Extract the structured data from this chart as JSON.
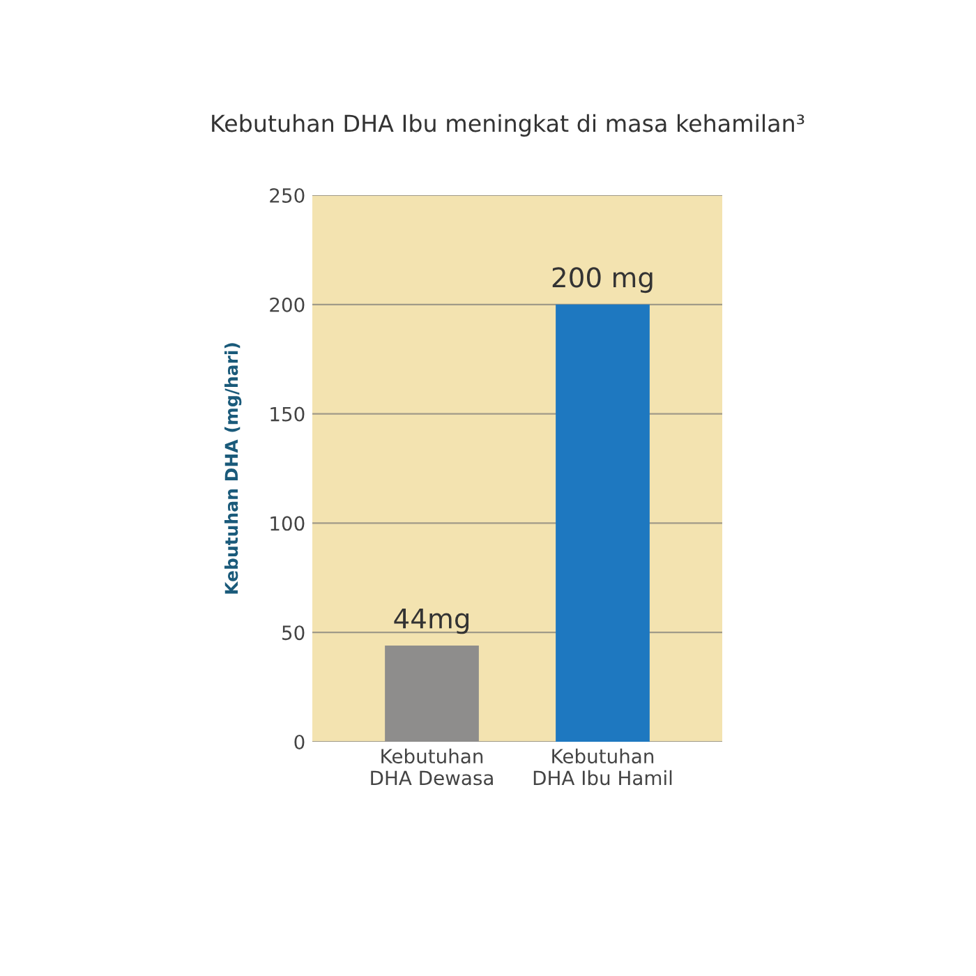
{
  "chart_data": {
    "type": "bar",
    "title": "Kebutuhan DHA Ibu meningkat di masa kehamilan³",
    "ylabel": "Kebutuhan DHA (mg/hari)",
    "categories": [
      "Kebutuhan\nDHA Dewasa",
      "Kebutuhan\nDHA Ibu Hamil"
    ],
    "values": [
      44,
      200
    ],
    "colors": [
      "#8e8d8c",
      "#1e78c0"
    ],
    "value_labels": [
      "44mg",
      "200 mg"
    ],
    "ylim": [
      0,
      250
    ],
    "yticks": [
      0,
      50,
      100,
      150,
      200,
      250
    ],
    "grid": "y"
  }
}
